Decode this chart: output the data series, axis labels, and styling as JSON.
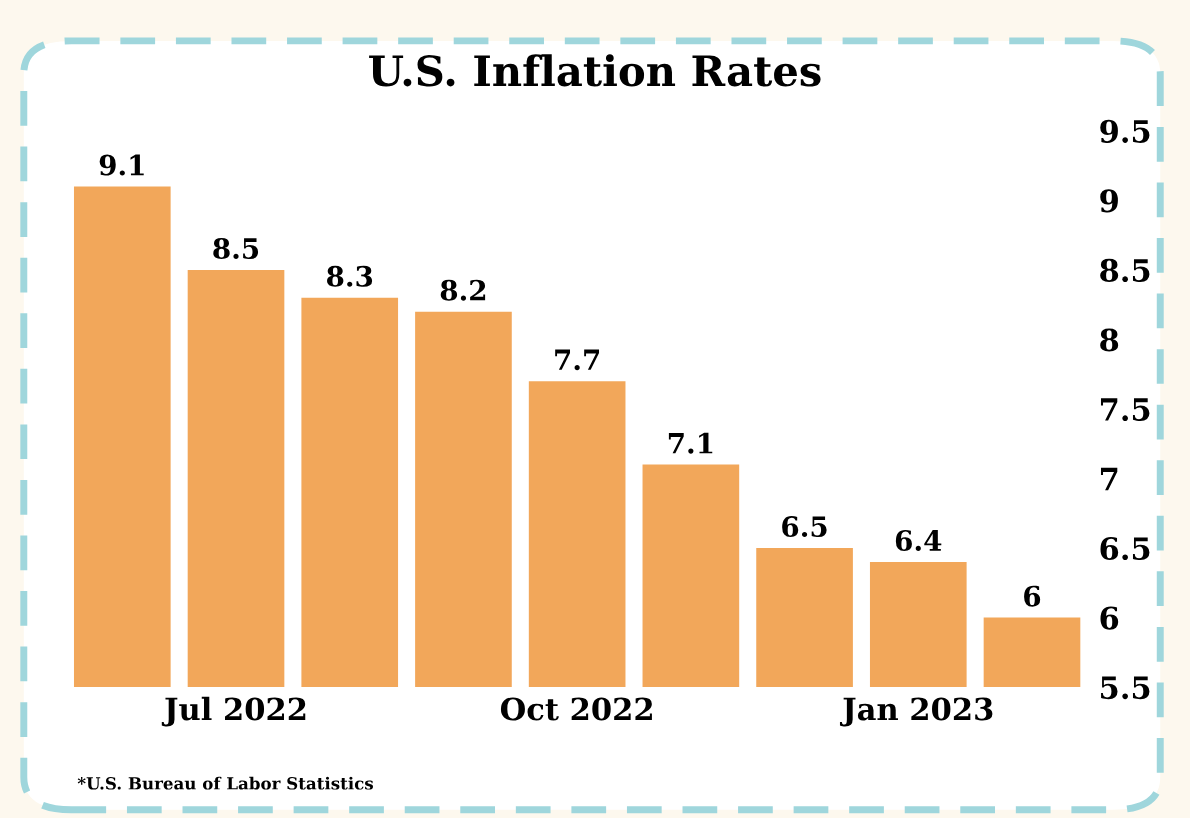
{
  "chart_data": {
    "type": "bar",
    "title": "U.S. Inflation Rates",
    "categories": [
      null,
      "Jul 2022",
      null,
      null,
      "Oct 2022",
      null,
      null,
      "Jan 2023",
      null
    ],
    "values": [
      9.1,
      8.5,
      8.3,
      8.2,
      7.7,
      7.1,
      6.5,
      6.4,
      6
    ],
    "color": "#f2a75a",
    "ylim": [
      5.5,
      9.5
    ],
    "yticks": [
      5.5,
      6,
      6.5,
      7,
      7.5,
      8,
      8.5,
      9,
      9.5
    ],
    "grid": false,
    "data_labels": true,
    "annotations": [
      "*U.S. Bureau of Labor Statistics"
    ]
  }
}
